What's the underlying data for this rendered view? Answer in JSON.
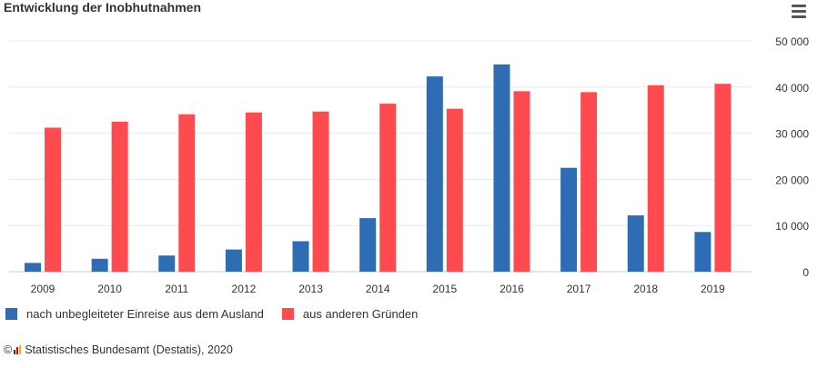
{
  "title": "Entwicklung der Inobhutnahmen",
  "footer": {
    "copyright_symbol": "©",
    "source": "Statistisches Bundesamt (Destatis), 2020"
  },
  "colors": {
    "series1": "#2e6db4",
    "series2": "#ff4b4f",
    "grid": "#e8e8e8",
    "axis": "#cccccc"
  },
  "chart_data": {
    "type": "bar",
    "title": "Entwicklung der Inobhutnahmen",
    "categories": [
      "2009",
      "2010",
      "2011",
      "2012",
      "2013",
      "2014",
      "2015",
      "2016",
      "2017",
      "2018",
      "2019"
    ],
    "series": [
      {
        "name": "nach unbegleiteter Einreise aus dem Ausland",
        "values": [
          1900,
          2800,
          3500,
          4800,
          6600,
          11600,
          42300,
          44900,
          22500,
          12200,
          8600
        ]
      },
      {
        "name": "aus anderen Gründen",
        "values": [
          31200,
          32500,
          34100,
          34500,
          34700,
          36400,
          35300,
          39100,
          38900,
          40400,
          40700
        ]
      }
    ],
    "y_ticks": [
      "0",
      "10 000",
      "20 000",
      "30 000",
      "40 000",
      "50 000"
    ],
    "y_tick_values": [
      0,
      10000,
      20000,
      30000,
      40000,
      50000
    ],
    "ylim": [
      0,
      50000
    ],
    "grid": true,
    "legend_position": "bottom-left",
    "y_axis_side": "right"
  }
}
